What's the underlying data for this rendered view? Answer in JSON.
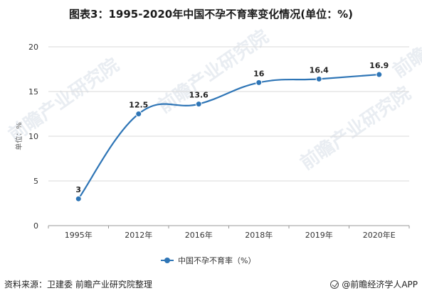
{
  "title": "图表3：1995-2020年中国不孕不育率变化情况(单位：%)",
  "chart_data": {
    "type": "line",
    "categories": [
      "1995年",
      "2012年",
      "2016年",
      "2018年",
      "2019年",
      "2020年E"
    ],
    "series": [
      {
        "name": "中国不孕不育率（%）",
        "values": [
          3,
          12.5,
          13.6,
          16,
          16.4,
          16.9
        ],
        "color": "#2e75b6"
      }
    ],
    "data_labels": [
      "3",
      "12.5",
      "13.6",
      "16",
      "16.4",
      "16.9"
    ],
    "ylabel": "单位：%",
    "ylim": [
      0,
      20
    ],
    "yticks": [
      0,
      5,
      10,
      15,
      20
    ],
    "grid": "horizontal",
    "legend_position": "bottom"
  },
  "watermark": "前瞻产业研究院",
  "footer": {
    "source": "资料来源：卫建委 前瞻产业研究院整理",
    "brand": "@前瞻经济学人APP"
  }
}
